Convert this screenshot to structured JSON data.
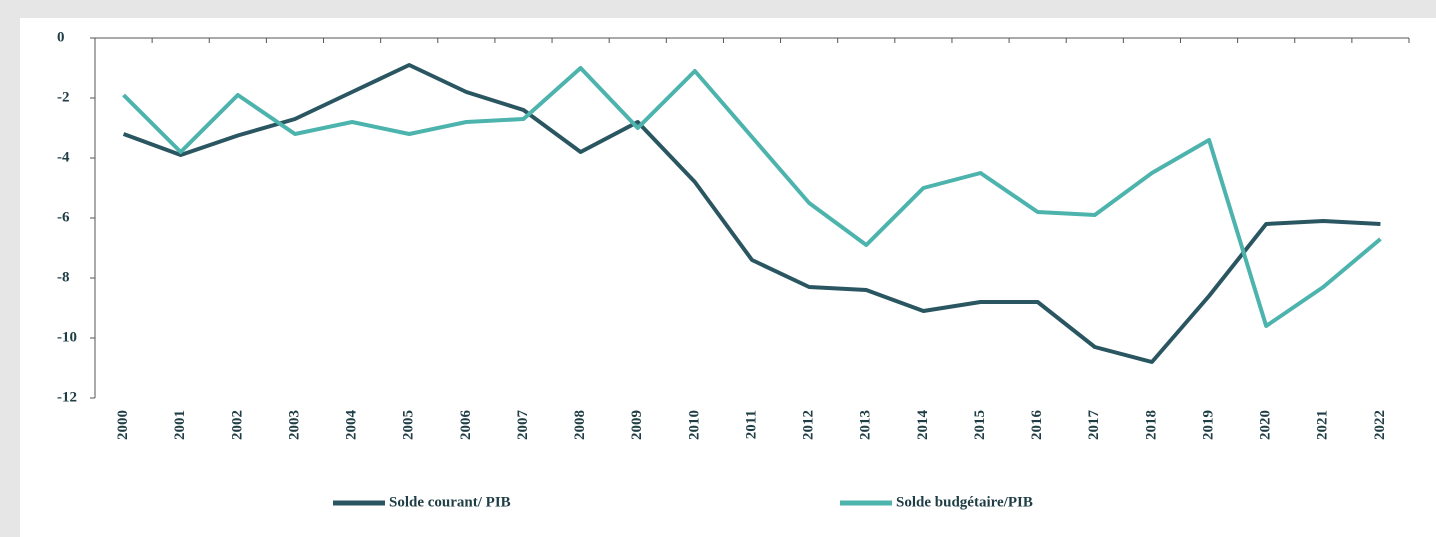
{
  "chart_data": {
    "type": "line",
    "categories": [
      "2000",
      "2001",
      "2002",
      "2003",
      "2004",
      "2005",
      "2006",
      "2007",
      "2008",
      "2009",
      "2010",
      "2011",
      "2012",
      "2013",
      "2014",
      "2015",
      "2016",
      "2017",
      "2018",
      "2019",
      "2020",
      "2021",
      "2022"
    ],
    "series": [
      {
        "name": "Solde courant/ PIB",
        "color": "#2a5661",
        "values": [
          -3.2,
          -3.9,
          -3.25,
          -2.7,
          -1.8,
          -0.9,
          -1.8,
          -2.4,
          -3.8,
          -2.8,
          -4.8,
          -7.4,
          -8.3,
          -8.4,
          -9.1,
          -8.8,
          -8.8,
          -10.3,
          -10.8,
          -8.6,
          -6.2,
          -6.1,
          -6.2
        ]
      },
      {
        "name": "Solde budgétaire/PIB",
        "color": "#4db3ad",
        "values": [
          -1.9,
          -3.8,
          -1.9,
          -3.2,
          -2.8,
          -3.2,
          -2.8,
          -2.7,
          -1.0,
          -3.0,
          -1.1,
          -3.3,
          -5.5,
          -6.9,
          -5.0,
          -4.5,
          -5.8,
          -5.9,
          -4.5,
          -3.4,
          -9.6,
          -8.3,
          -6.7
        ]
      }
    ],
    "ylim": [
      -12,
      0
    ],
    "yticks": [
      0,
      -2,
      -4,
      -6,
      -8,
      -10,
      -12
    ],
    "legend": "bottom"
  }
}
